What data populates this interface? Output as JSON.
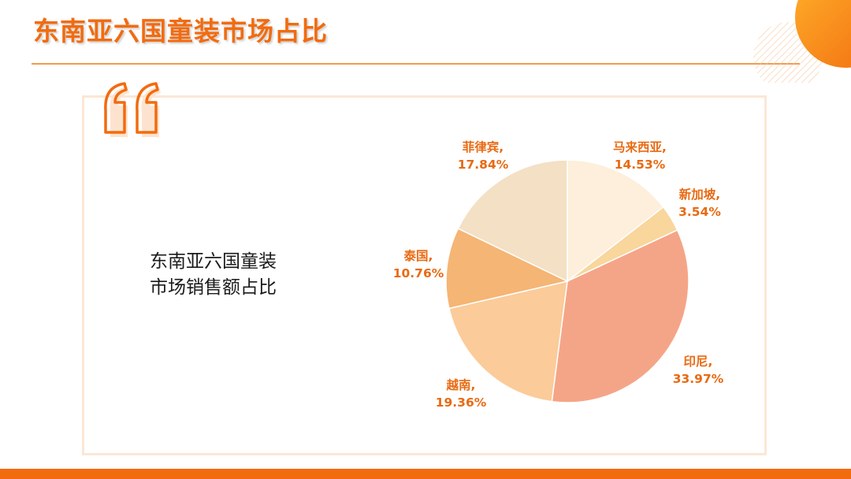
{
  "title": "东南亚六国童装市场占比",
  "description": [
    "东南亚六国童装",
    "市场销售额占比"
  ],
  "colors": {
    "accent": "#F26B0F",
    "frame": "#FBE7D6",
    "label": "#E86A12"
  },
  "chart_data": {
    "type": "pie",
    "title": "",
    "slices": [
      {
        "name": "马来西亚",
        "value": 14.53,
        "label": "14.53%",
        "color": "#FDEFDB"
      },
      {
        "name": "新加坡",
        "value": 3.54,
        "label": "3.54%",
        "color": "#F8D69C"
      },
      {
        "name": "印尼",
        "value": 33.97,
        "label": "33.97%",
        "color": "#F5A587"
      },
      {
        "name": "越南",
        "value": 19.36,
        "label": "19.36%",
        "color": "#FBCB9A"
      },
      {
        "name": "泰国",
        "value": 10.76,
        "label": "10.76%",
        "color": "#F5B574"
      },
      {
        "name": "菲律宾",
        "value": 17.84,
        "label": "17.84%",
        "color": "#F3E0C5"
      }
    ],
    "start": "12 o'clock",
    "direction": "clockwise",
    "legend": "none"
  }
}
